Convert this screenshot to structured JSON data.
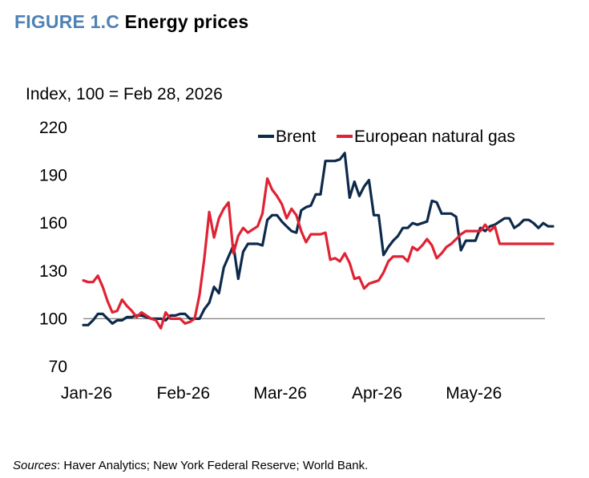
{
  "figure": {
    "label": "FIGURE 1.C",
    "name": "Energy prices",
    "unit_note": "Index, 100 = Feb 28, 2026",
    "sources_label": "Sources",
    "sources_text": ": Haver Analytics; New York Federal Reserve; World Bank."
  },
  "colors": {
    "title_accent": "#4f81b5",
    "brent": "#0d2a4a",
    "gas": "#e02233",
    "baseline": "#7f7f7f"
  },
  "chart_data": {
    "type": "line",
    "title": "Energy prices",
    "ylabel": "Index, 100 = Feb 28, 2026",
    "ylim": [
      70,
      220
    ],
    "y_ticks": [
      70,
      100,
      130,
      160,
      190,
      220
    ],
    "x_tick_labels": [
      "Jan-26",
      "Feb-26",
      "Mar-26",
      "Apr-26",
      "May-26"
    ],
    "x_tick_positions": [
      0,
      20,
      40,
      60,
      80
    ],
    "xlim": [
      0,
      97
    ],
    "reference_line": 100,
    "grid": false,
    "legend_position": "top-right",
    "series": [
      {
        "name": "Brent",
        "color": "#0d2a4a",
        "x": [
          0,
          1,
          2,
          3,
          4,
          5,
          6,
          7,
          8,
          9,
          10,
          11,
          12,
          13,
          14,
          15,
          16,
          17,
          18,
          19,
          20,
          21,
          22,
          23,
          24,
          25,
          26,
          27,
          28,
          29,
          30,
          31,
          32,
          33,
          34,
          35,
          36,
          37,
          38,
          39,
          40,
          41,
          42,
          43,
          44,
          45,
          46,
          47,
          48,
          49,
          50,
          51,
          52,
          53,
          54,
          55,
          56,
          57,
          58,
          59,
          60,
          61,
          62,
          63,
          64,
          65,
          66,
          67,
          68,
          69,
          70,
          71,
          72,
          73,
          74,
          75,
          76,
          77,
          78,
          79,
          80,
          81,
          82,
          83,
          84,
          85,
          86,
          87,
          88,
          89,
          90,
          91,
          92,
          93,
          94,
          95,
          96,
          97
        ],
        "values": [
          96,
          96,
          99,
          103,
          103,
          100,
          97,
          99,
          99,
          101,
          101,
          102,
          102,
          101,
          100,
          100,
          100,
          99,
          102,
          102,
          103,
          103,
          100,
          100,
          100,
          106,
          110,
          120,
          116,
          132,
          139,
          146,
          125,
          142,
          147,
          147,
          147,
          146,
          162,
          165,
          165,
          161,
          158,
          155,
          154,
          168,
          170,
          171,
          178,
          178,
          199,
          199,
          199,
          200,
          204,
          176,
          186,
          177,
          183,
          187,
          165,
          165,
          140,
          145,
          149,
          152,
          157,
          157,
          160,
          159,
          160,
          161,
          174,
          173,
          166,
          166,
          166,
          164,
          143,
          149,
          149,
          149,
          157,
          155,
          158,
          159,
          161,
          163,
          163,
          157,
          159,
          162,
          162,
          160,
          157,
          160,
          158,
          158
        ]
      },
      {
        "name": "European natural gas",
        "color": "#e02233",
        "x": [
          0,
          1,
          2,
          3,
          4,
          5,
          6,
          7,
          8,
          9,
          10,
          11,
          12,
          13,
          14,
          15,
          16,
          17,
          18,
          19,
          20,
          21,
          22,
          23,
          24,
          25,
          26,
          27,
          28,
          29,
          30,
          31,
          32,
          33,
          34,
          35,
          36,
          37,
          38,
          39,
          40,
          41,
          42,
          43,
          44,
          45,
          46,
          47,
          48,
          49,
          50,
          51,
          52,
          53,
          54,
          55,
          56,
          57,
          58,
          59,
          60,
          61,
          62,
          63,
          64,
          65,
          66,
          67,
          68,
          69,
          70,
          71,
          72,
          73,
          74,
          75,
          76,
          77,
          78,
          79,
          80,
          81,
          82,
          83,
          84,
          85,
          86,
          87,
          88,
          89,
          90,
          91,
          92,
          93,
          94,
          95,
          96,
          97
        ],
        "values": [
          124,
          123,
          123,
          127,
          120,
          111,
          104,
          105,
          112,
          108,
          105,
          101,
          104,
          102,
          100,
          99,
          94,
          104,
          100,
          100,
          100,
          97,
          98,
          100,
          115,
          138,
          167,
          151,
          163,
          169,
          173,
          141,
          152,
          157,
          154,
          156,
          158,
          166,
          188,
          181,
          177,
          172,
          163,
          169,
          165,
          155,
          148,
          153,
          153,
          153,
          154,
          137,
          138,
          136,
          141,
          135,
          125,
          126,
          119,
          122,
          123,
          124,
          129,
          136,
          139,
          139,
          139,
          136,
          145,
          143,
          146,
          150,
          146,
          138,
          141,
          145,
          147,
          150,
          153,
          155,
          155,
          155,
          155,
          159,
          155,
          158,
          147,
          147,
          147,
          147,
          147,
          147,
          147,
          147,
          147,
          147,
          147,
          147
        ]
      }
    ]
  }
}
